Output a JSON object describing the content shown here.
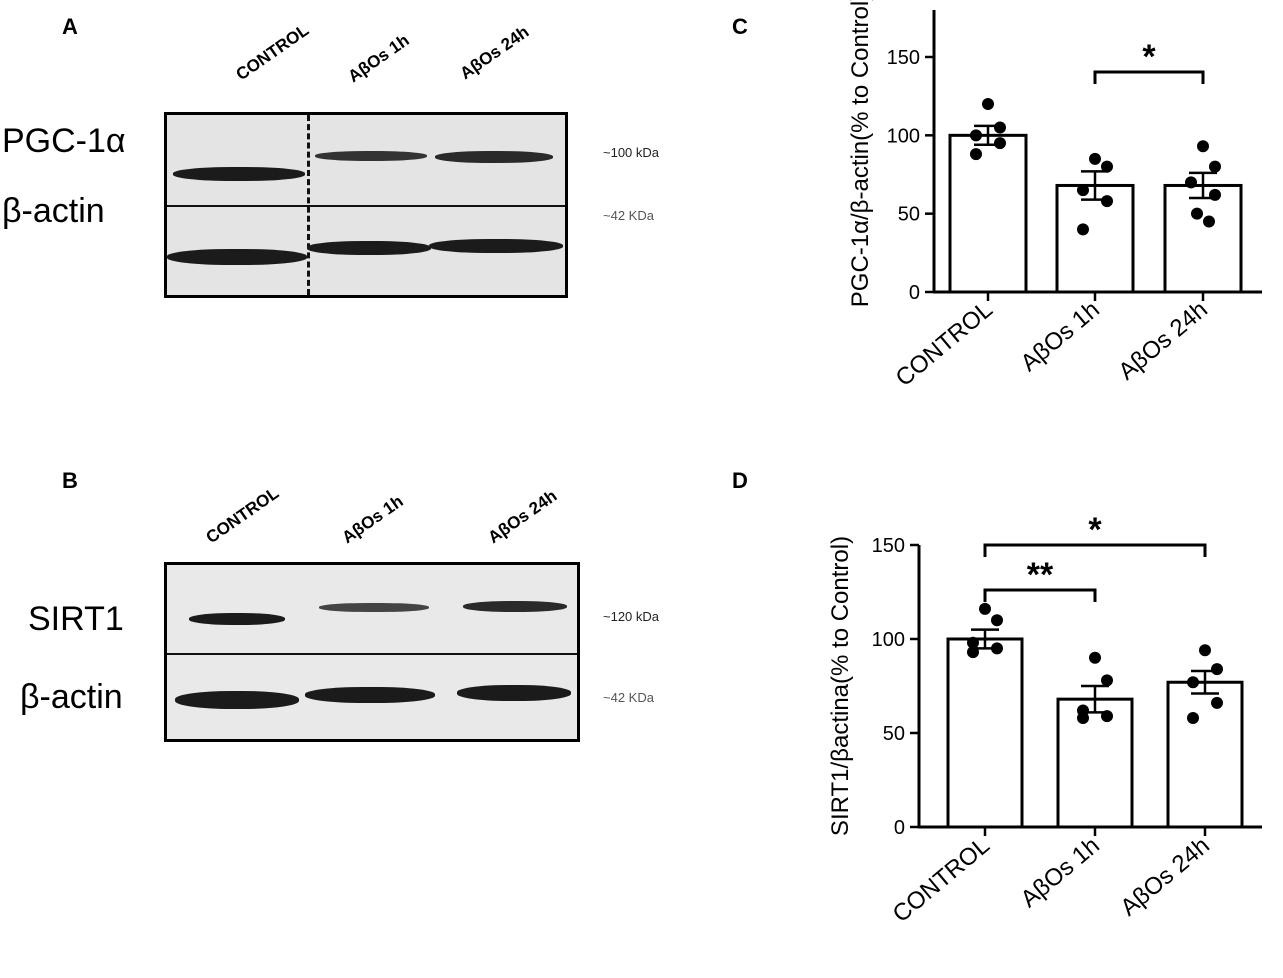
{
  "panels": {
    "A": {
      "letter": "A",
      "lanes": [
        "CONTROL",
        "AβOs 1h",
        "AβOs 24h"
      ],
      "proteins": [
        "PGC-1α",
        "β-actin"
      ],
      "sizes": [
        "~100 kDa",
        "~42 KDa"
      ]
    },
    "B": {
      "letter": "B",
      "lanes": [
        "CONTROL",
        "AβOs 1h",
        "AβOs 24h"
      ],
      "proteins": [
        "SIRT1",
        "β-actin"
      ],
      "sizes": [
        "~120 kDa",
        "~42 KDa"
      ]
    },
    "C": {
      "letter": "C"
    },
    "D": {
      "letter": "D"
    }
  },
  "chart_data": [
    {
      "type": "bar",
      "panel": "C",
      "categories": [
        "CONTROL",
        "AβOs 1h",
        "AβOs 24h"
      ],
      "values": [
        100,
        68,
        68
      ],
      "sem": [
        6,
        9,
        8
      ],
      "points": [
        [
          120,
          105,
          100,
          95,
          88
        ],
        [
          85,
          80,
          65,
          58,
          40
        ],
        [
          93,
          80,
          70,
          62,
          50,
          45
        ]
      ],
      "ylabel": "PGC-1α/β-actin(% to Control)",
      "ylim": [
        0,
        180
      ],
      "yticks": [
        0,
        50,
        100,
        150
      ],
      "significance": [
        {
          "from": 1,
          "to": 2,
          "label": "*"
        }
      ]
    },
    {
      "type": "bar",
      "panel": "D",
      "categories": [
        "CONTROL",
        "AβOs 1h",
        "AβOs 24h"
      ],
      "values": [
        100,
        68,
        77
      ],
      "sem": [
        5,
        7,
        6
      ],
      "points": [
        [
          116,
          110,
          98,
          95,
          93
        ],
        [
          90,
          78,
          62,
          59,
          58
        ],
        [
          94,
          84,
          77,
          66,
          58
        ]
      ],
      "ylabel": "SIRT1/βactina(% to Control)",
      "ylim": [
        0,
        150
      ],
      "yticks": [
        0,
        50,
        100,
        150
      ],
      "significance": [
        {
          "from": 0,
          "to": 1,
          "label": "**"
        },
        {
          "from": 0,
          "to": 2,
          "label": "*"
        }
      ]
    }
  ]
}
